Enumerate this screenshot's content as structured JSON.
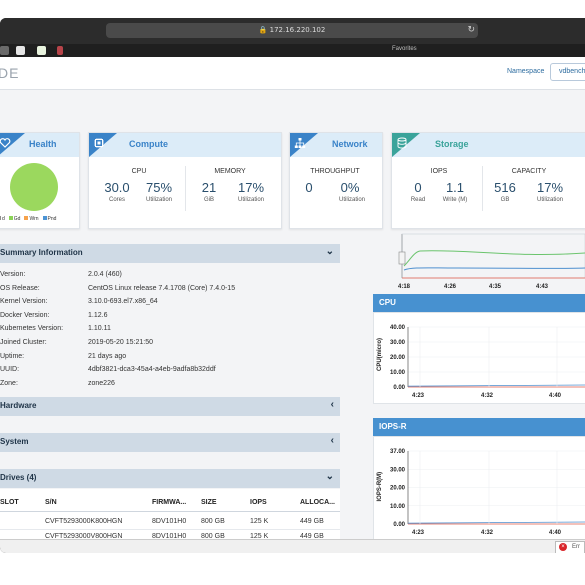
{
  "browser": {
    "url": "172.16.220.102",
    "favorites_label": "Favorites"
  },
  "app": {
    "logo_text": "DE",
    "namespace_label": "Namespace",
    "namespace_value": "vdbench"
  },
  "health": {
    "title": "Health",
    "legend": [
      {
        "label": "d",
        "color": "#8e8e8e"
      },
      {
        "label": "Gd",
        "color": "#8bd356"
      },
      {
        "label": "Wrn",
        "color": "#f6a24b"
      },
      {
        "label": "Pnd",
        "color": "#4c94d4"
      }
    ],
    "pie_color": "#9bd85e"
  },
  "compute": {
    "title": "Compute",
    "cpu_label": "CPU",
    "cpu_cores": "30.0",
    "cpu_cores_unit": "Cores",
    "cpu_util": "75%",
    "cpu_util_unit": "Utilization",
    "memory_label": "MEMORY",
    "mem_gib": "21",
    "mem_gib_unit": "GiB",
    "mem_util": "17%",
    "mem_util_unit": "Utilization"
  },
  "network": {
    "title": "Network",
    "throughput_label": "THROUGHPUT",
    "throughput": "0",
    "util": "0%",
    "util_unit": "Utilization"
  },
  "storage": {
    "title": "Storage",
    "iops_label": "IOPS",
    "read": "0",
    "read_unit": "Read",
    "write": "1.1",
    "write_unit": "Write (M)",
    "capacity_label": "CAPACITY",
    "cap_gb": "516",
    "cap_gb_unit": "GB",
    "cap_util": "17%",
    "cap_util_unit": "Utilization"
  },
  "summary": {
    "title": "Summary Information",
    "rows": [
      {
        "key": "Version:",
        "value": "2.0.4 (460)"
      },
      {
        "key": "OS Release:",
        "value": "CentOS Linux release 7.4.1708 (Core) 7.4.0-15"
      },
      {
        "key": "Kernel Version:",
        "value": "3.10.0-693.el7.x86_64"
      },
      {
        "key": "Docker Version:",
        "value": "1.12.6"
      },
      {
        "key": "Kubernetes Version:",
        "value": "1.10.11"
      },
      {
        "key": "Joined Cluster:",
        "value": "2019-05-20 15:21:50"
      },
      {
        "key": "Uptime:",
        "value": "21 days ago"
      },
      {
        "key": "UUID:",
        "value": "4dbf3821-dca3-45a4-a4eb-9adfa8b32ddf"
      },
      {
        "key": "Zone:",
        "value": "zone226"
      }
    ]
  },
  "hardware": {
    "title": "Hardware"
  },
  "system": {
    "title": "System"
  },
  "drives": {
    "title": "Drives (4)",
    "columns": [
      "SLOT",
      "S/N",
      "FIRMWA...",
      "SIZE",
      "IOPS",
      "ALLOCA..."
    ],
    "rows": [
      [
        "",
        "CVFT5293000K800HGN",
        "8DV101H0",
        "800 GB",
        "125 K",
        "449 GB"
      ],
      [
        "",
        "CVFT5293000V800HGN",
        "8DV101H0",
        "800 GB",
        "125 K",
        "449 GB"
      ]
    ]
  },
  "timeline": {
    "ticks": [
      "4:18",
      "4:26",
      "4:35",
      "4:43"
    ]
  },
  "cpu_chart": {
    "title": "CPU",
    "ylabel": "CPU(micro)",
    "y_ticks": [
      "40.00",
      "30.00",
      "20.00",
      "10.00",
      "0.00"
    ],
    "x_ticks": [
      "4:23",
      "4:32",
      "4:40"
    ]
  },
  "iops_chart": {
    "title": "IOPS-R",
    "ylabel": "IOPS-R(M)",
    "y_ticks": [
      "37.00",
      "30.00",
      "20.00",
      "10.00",
      "0.00"
    ],
    "x_ticks": [
      "4:23",
      "4:32",
      "4:40"
    ]
  },
  "statusbar": {
    "error_label": "Err"
  }
}
